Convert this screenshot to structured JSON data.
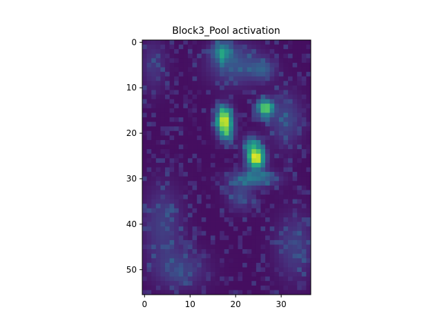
{
  "chart_data": {
    "type": "heatmap",
    "title": "Block3_Pool activation",
    "xlabel": "",
    "ylabel": "",
    "rows": 56,
    "cols": 37,
    "xlim": [
      -0.5,
      36.5
    ],
    "ylim": [
      55.5,
      -0.5
    ],
    "x_ticks": [
      0,
      10,
      20,
      30
    ],
    "y_ticks": [
      0,
      10,
      20,
      30,
      40,
      50
    ],
    "colormap": "viridis",
    "value_range": [
      0,
      1
    ],
    "background_value": 0.04,
    "grid": false,
    "hotspots": [
      {
        "x": 17.5,
        "y": 17.0,
        "peak": 0.9,
        "sigma_x": 1.2,
        "sigma_y": 1.9
      },
      {
        "x": 26.5,
        "y": 14.5,
        "peak": 0.75,
        "sigma_x": 1.2,
        "sigma_y": 1.3
      },
      {
        "x": 24.5,
        "y": 25.5,
        "peak": 0.95,
        "sigma_x": 1.3,
        "sigma_y": 1.6
      },
      {
        "x": 23.5,
        "y": 22.5,
        "peak": 0.4,
        "sigma_x": 1.2,
        "sigma_y": 1.4
      },
      {
        "x": 24.0,
        "y": 30.0,
        "peak": 0.35,
        "sigma_x": 3.5,
        "sigma_y": 1.2
      },
      {
        "x": 17.0,
        "y": 2.0,
        "peak": 0.4,
        "sigma_x": 1.5,
        "sigma_y": 1.5
      },
      {
        "x": 20.0,
        "y": 5.0,
        "peak": 0.22,
        "sigma_x": 4.0,
        "sigma_y": 3.0
      },
      {
        "x": 26.0,
        "y": 6.0,
        "peak": 0.22,
        "sigma_x": 1.8,
        "sigma_y": 1.5
      },
      {
        "x": 18.0,
        "y": 20.0,
        "peak": 0.35,
        "sigma_x": 1.2,
        "sigma_y": 1.5
      },
      {
        "x": 21.0,
        "y": 34.0,
        "peak": 0.18,
        "sigma_x": 2.0,
        "sigma_y": 2.0
      },
      {
        "x": 31.0,
        "y": 17.0,
        "peak": 0.18,
        "sigma_x": 2.5,
        "sigma_y": 4.0
      },
      {
        "x": 4.0,
        "y": 40.0,
        "peak": 0.15,
        "sigma_x": 3.0,
        "sigma_y": 6.0
      },
      {
        "x": 8.0,
        "y": 50.0,
        "peak": 0.15,
        "sigma_x": 4.0,
        "sigma_y": 3.0
      },
      {
        "x": 33.0,
        "y": 45.0,
        "peak": 0.15,
        "sigma_x": 3.0,
        "sigma_y": 5.0
      },
      {
        "x": 2.0,
        "y": 5.0,
        "peak": 0.12,
        "sigma_x": 2.0,
        "sigma_y": 4.0
      }
    ]
  }
}
